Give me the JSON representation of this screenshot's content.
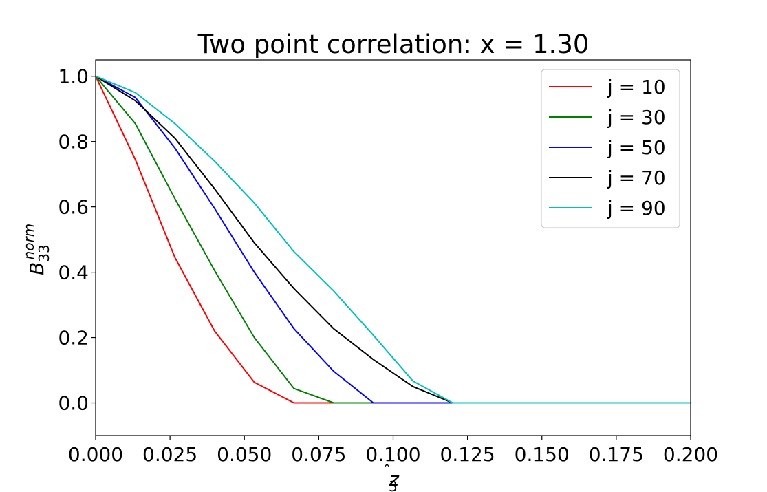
{
  "chart_data": {
    "type": "line",
    "title": "Two point correlation: x = 1.30",
    "xlabel": {
      "base": "z",
      "hat": "̂",
      "sub": "3"
    },
    "ylabel": {
      "base": "B",
      "sub": "33",
      "sup": "norm"
    },
    "xlim": [
      0.0,
      0.2
    ],
    "ylim": [
      -0.1,
      1.05
    ],
    "xticks": [
      0.0,
      0.025,
      0.05,
      0.075,
      0.1,
      0.125,
      0.15,
      0.175,
      0.2
    ],
    "xtick_labels": [
      "0.000",
      "0.025",
      "0.050",
      "0.075",
      "0.100",
      "0.125",
      "0.150",
      "0.175",
      "0.200"
    ],
    "yticks": [
      0.0,
      0.2,
      0.4,
      0.6,
      0.8,
      1.0
    ],
    "ytick_labels": [
      "0.0",
      "0.2",
      "0.4",
      "0.6",
      "0.8",
      "1.0"
    ],
    "grid": false,
    "legend_position": "top-right",
    "x": [
      0.0,
      0.01333,
      0.02667,
      0.04,
      0.05333,
      0.06667,
      0.08,
      0.09333,
      0.10667,
      0.12,
      0.13333,
      0.14667,
      0.16,
      0.17333,
      0.18667,
      0.2
    ],
    "series": [
      {
        "name": "j = 10",
        "color": "#ff0000",
        "values": [
          1.0,
          0.745,
          0.445,
          0.22,
          0.063,
          0.0,
          0.0,
          0.0,
          0.0,
          0.0,
          0.0,
          0.0,
          0.0,
          0.0,
          0.0,
          0.0
        ]
      },
      {
        "name": "j = 30",
        "color": "#008000",
        "values": [
          1.0,
          0.855,
          0.625,
          0.405,
          0.2,
          0.044,
          0.0,
          0.0,
          0.0,
          0.0,
          0.0,
          0.0,
          0.0,
          0.0,
          0.0,
          0.0
        ]
      },
      {
        "name": "j = 50",
        "color": "#0000ff",
        "values": [
          1.0,
          0.935,
          0.78,
          0.595,
          0.4,
          0.227,
          0.097,
          0.0,
          0.0,
          0.0,
          0.0,
          0.0,
          0.0,
          0.0,
          0.0,
          0.0
        ]
      },
      {
        "name": "j = 70",
        "color": "#000000",
        "values": [
          1.0,
          0.925,
          0.81,
          0.655,
          0.49,
          0.35,
          0.227,
          0.133,
          0.05,
          0.0,
          0.0,
          0.0,
          0.0,
          0.0,
          0.0,
          0.0
        ]
      },
      {
        "name": "j = 90",
        "color": "#00bfbf",
        "values": [
          1.0,
          0.95,
          0.855,
          0.74,
          0.612,
          0.463,
          0.343,
          0.207,
          0.067,
          0.0,
          0.0,
          0.0,
          0.0,
          0.0,
          0.0,
          0.0
        ]
      }
    ]
  }
}
